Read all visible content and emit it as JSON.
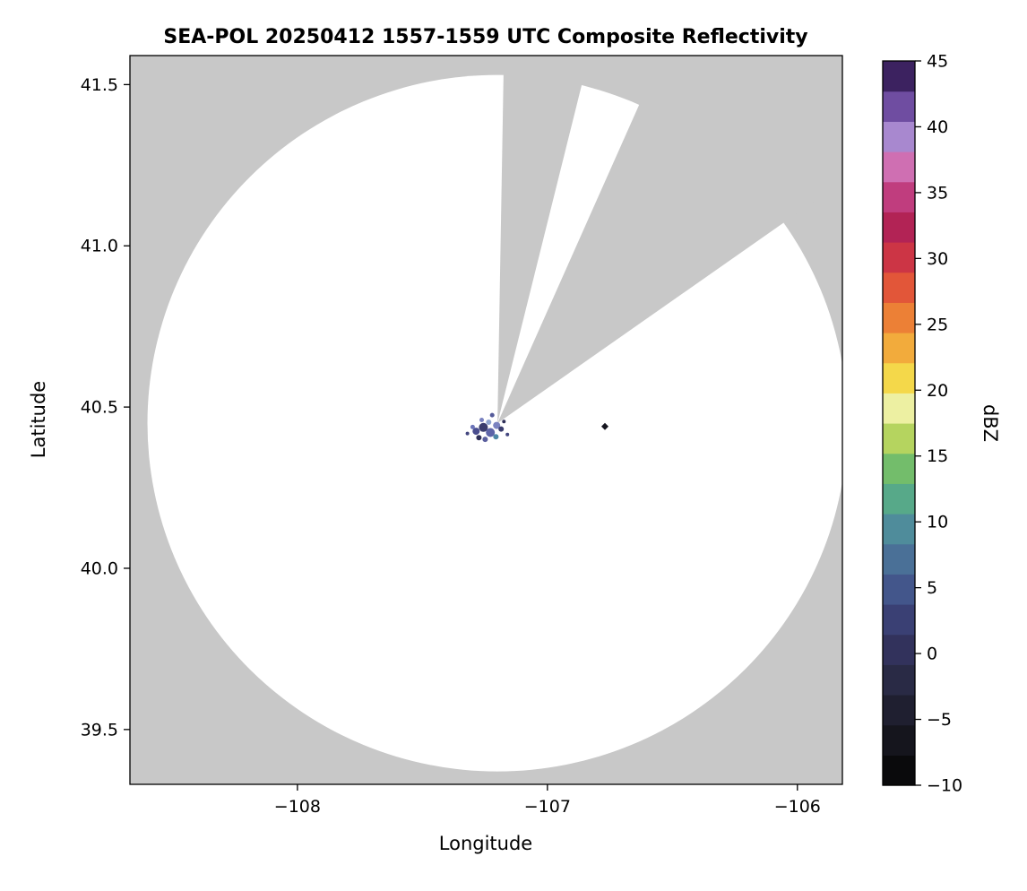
{
  "title": "SEA-POL 20250412 1557-1559 UTC Composite Reflectivity",
  "chart_data": {
    "type": "heatmap",
    "title": "SEA-POL 20250412 1557-1559 UTC Composite Reflectivity",
    "xlabel": "Longitude",
    "ylabel": "Latitude",
    "xlim": [
      -108.67,
      -105.82
    ],
    "ylim": [
      39.33,
      41.59
    ],
    "grid": false,
    "legend": "colorbar-right",
    "xticks": [
      {
        "v": -108,
        "label": "−108"
      },
      {
        "v": -107,
        "label": "−107"
      },
      {
        "v": -106,
        "label": "−106"
      }
    ],
    "yticks": [
      {
        "v": 39.5,
        "label": "39.5"
      },
      {
        "v": 40.0,
        "label": "40.0"
      },
      {
        "v": 40.5,
        "label": "40.5"
      },
      {
        "v": 41.0,
        "label": "41.0"
      },
      {
        "v": 41.5,
        "label": "41.5"
      }
    ],
    "background_color": "#c8c8c8",
    "coverage_circle": {
      "center_lon": -107.2,
      "center_lat": 40.45,
      "radius_lon_deg": 1.4,
      "radius_lat_deg": 1.08,
      "fill": "#ffffff"
    },
    "blanked_sectors": [
      {
        "azimuth_start_deg": 1,
        "azimuth_end_deg": 14
      },
      {
        "azimuth_start_deg": 24,
        "azimuth_end_deg": 55
      }
    ],
    "echoes": [
      {
        "lon": -107.285,
        "lat": 40.425,
        "r": 4,
        "color": "#4a4e8f"
      },
      {
        "lon": -107.256,
        "lat": 40.437,
        "r": 5,
        "color": "#3a3d6e"
      },
      {
        "lon": -107.228,
        "lat": 40.421,
        "r": 5,
        "color": "#5d64a8"
      },
      {
        "lon": -107.203,
        "lat": 40.443,
        "r": 4,
        "color": "#7a82c0"
      },
      {
        "lon": -107.235,
        "lat": 40.453,
        "r": 3,
        "color": "#8ea4cf"
      },
      {
        "lon": -107.274,
        "lat": 40.405,
        "r": 3,
        "color": "#2f3058"
      },
      {
        "lon": -107.206,
        "lat": 40.408,
        "r": 3,
        "color": "#4d87a6"
      },
      {
        "lon": -107.249,
        "lat": 40.4,
        "r": 3,
        "color": "#5a5f9e"
      },
      {
        "lon": -107.185,
        "lat": 40.432,
        "r": 3,
        "color": "#3a3d6e"
      },
      {
        "lon": -107.299,
        "lat": 40.438,
        "r": 2.5,
        "color": "#6b74b8"
      },
      {
        "lon": -107.221,
        "lat": 40.475,
        "r": 2.5,
        "color": "#555b9a"
      },
      {
        "lon": -107.263,
        "lat": 40.46,
        "r": 2.5,
        "color": "#7a82c0"
      },
      {
        "lon": -107.174,
        "lat": 40.455,
        "r": 2,
        "color": "#2f3058"
      },
      {
        "lon": -107.32,
        "lat": 40.418,
        "r": 2,
        "color": "#44477f"
      },
      {
        "lon": -107.16,
        "lat": 40.415,
        "r": 2,
        "color": "#44477f"
      }
    ],
    "point_marker": {
      "lon": -106.77,
      "lat": 40.44,
      "color": "#15151f",
      "shape": "diamond"
    },
    "colorbar": {
      "label": "dBZ",
      "min": -10,
      "max": 45,
      "ticks": [
        {
          "v": -10,
          "label": "−10"
        },
        {
          "v": -5,
          "label": "−5"
        },
        {
          "v": 0,
          "label": "0"
        },
        {
          "v": 5,
          "label": "5"
        },
        {
          "v": 10,
          "label": "10"
        },
        {
          "v": 15,
          "label": "15"
        },
        {
          "v": 20,
          "label": "20"
        },
        {
          "v": 25,
          "label": "25"
        },
        {
          "v": 30,
          "label": "30"
        },
        {
          "v": 35,
          "label": "35"
        },
        {
          "v": 40,
          "label": "40"
        },
        {
          "v": 45,
          "label": "45"
        }
      ],
      "colors_bottom_to_top": [
        "#0a0a0c",
        "#15151d",
        "#1f1f30",
        "#292a45",
        "#32325c",
        "#3a4074",
        "#43568b",
        "#4a7097",
        "#4f8c9b",
        "#57a989",
        "#73bd6b",
        "#b5d45f",
        "#edf0a2",
        "#f4d84a",
        "#f2ab3c",
        "#ec8036",
        "#e25639",
        "#cc3545",
        "#b22355",
        "#c03d7e",
        "#cf6fb2",
        "#a888cf",
        "#6f4da1",
        "#3c2260"
      ]
    }
  }
}
